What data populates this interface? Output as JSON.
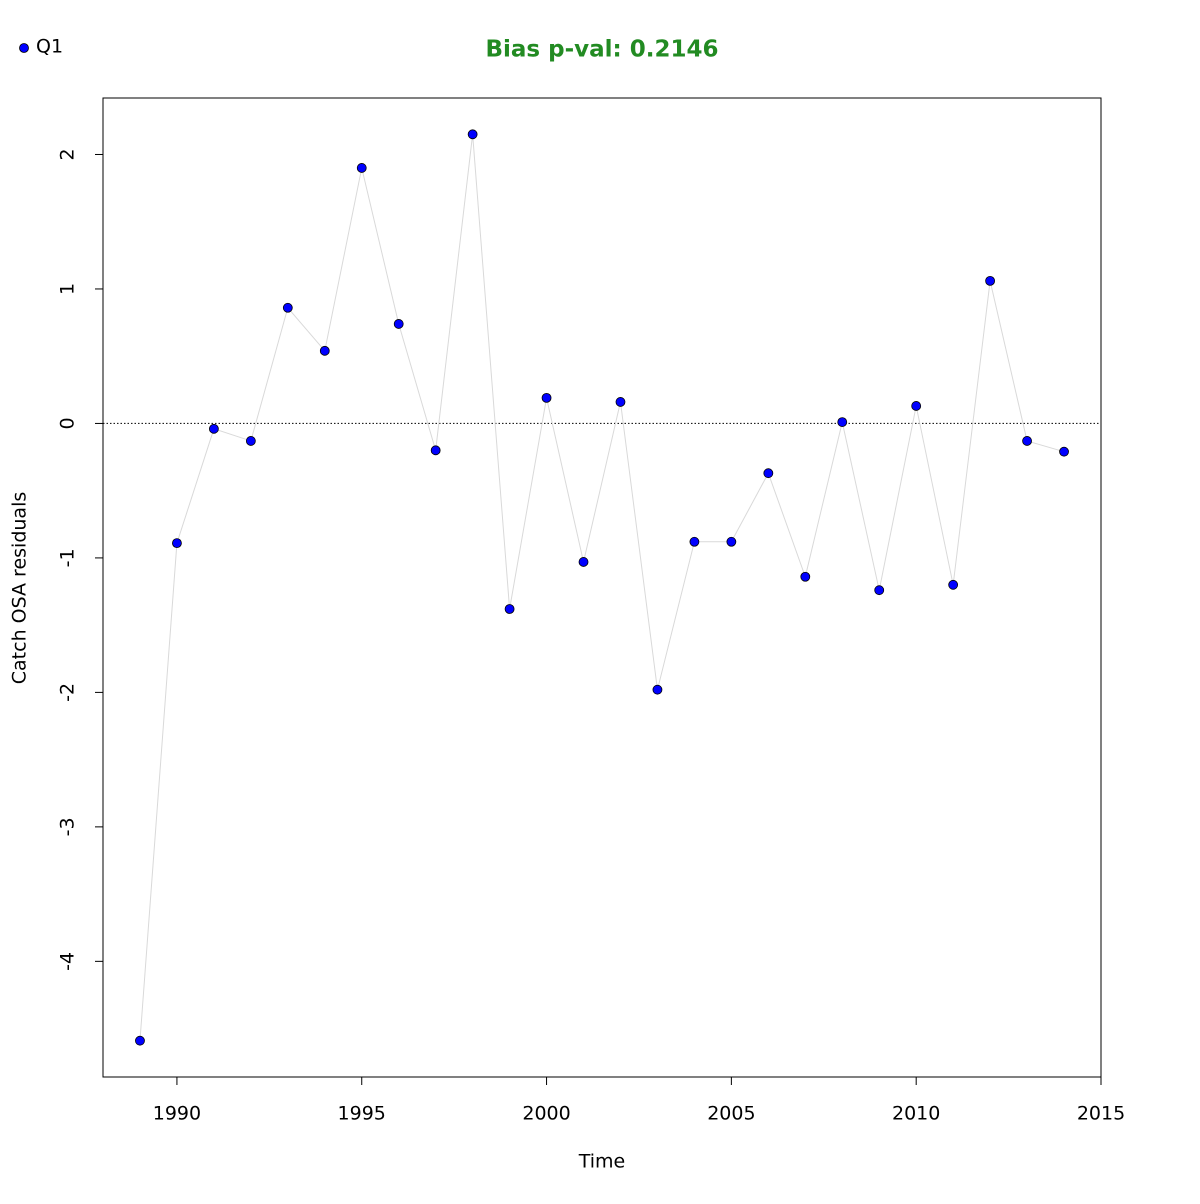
{
  "chart_data": {
    "type": "scatter",
    "title": "Bias p-val: 0.2146",
    "title_color": "#228b22",
    "x_label": "Time",
    "y_label": "Catch OSA residuals",
    "x": [
      1989,
      1990,
      1991,
      1992,
      1993,
      1994,
      1995,
      1996,
      1997,
      1998,
      1999,
      2000,
      2001,
      2002,
      2003,
      2004,
      2005,
      2006,
      2007,
      2008,
      2009,
      2010,
      2011,
      2012,
      2013,
      2014
    ],
    "series": [
      {
        "name": "Q1",
        "color": "#0000ff",
        "line_color": "#d9d9d9",
        "values": [
          -4.59,
          -0.89,
          -0.04,
          -0.13,
          0.86,
          0.54,
          1.9,
          0.74,
          -0.2,
          2.15,
          -1.38,
          0.19,
          -1.03,
          0.16,
          -1.98,
          -0.88,
          -0.88,
          -0.37,
          -1.14,
          0.01,
          -1.24,
          0.13,
          -1.2,
          1.06,
          -0.13,
          -0.21
        ]
      }
    ],
    "xlim": [
      1988,
      2015
    ],
    "ylim": [
      -4.86,
      2.42
    ],
    "xticks": [
      1990,
      1995,
      2000,
      2005,
      2010,
      2015
    ],
    "yticks": [
      -4,
      -3,
      -2,
      -1,
      0,
      1,
      2
    ],
    "reference_line": 0,
    "legend": "top-left"
  }
}
